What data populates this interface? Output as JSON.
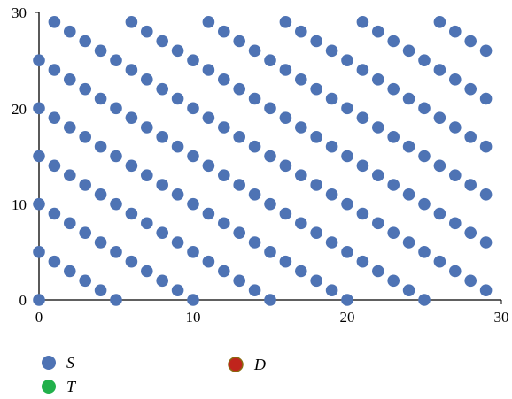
{
  "chart_data": {
    "type": "scatter",
    "xlim": [
      0,
      30
    ],
    "ylim": [
      0,
      30
    ],
    "x_ticks": [
      "0",
      "10",
      "20",
      "30"
    ],
    "y_ticks": [
      "0",
      "10",
      "20",
      "30"
    ],
    "grid": false,
    "legend_position": "bottom-left",
    "series": [
      {
        "name": "S",
        "color": "#4e73b4",
        "points": [
          [
            0,
            0
          ],
          [
            0,
            5
          ],
          [
            0,
            10
          ],
          [
            0,
            15
          ],
          [
            0,
            20
          ],
          [
            0,
            25
          ],
          [
            1,
            4
          ],
          [
            1,
            9
          ],
          [
            1,
            14
          ],
          [
            1,
            19
          ],
          [
            1,
            24
          ],
          [
            1,
            29
          ],
          [
            2,
            3
          ],
          [
            2,
            8
          ],
          [
            2,
            13
          ],
          [
            2,
            18
          ],
          [
            2,
            23
          ],
          [
            2,
            28
          ],
          [
            3,
            2
          ],
          [
            3,
            7
          ],
          [
            3,
            12
          ],
          [
            3,
            17
          ],
          [
            3,
            22
          ],
          [
            3,
            27
          ],
          [
            4,
            1
          ],
          [
            4,
            6
          ],
          [
            4,
            11
          ],
          [
            4,
            16
          ],
          [
            4,
            21
          ],
          [
            4,
            26
          ],
          [
            5,
            0
          ],
          [
            5,
            5
          ],
          [
            5,
            10
          ],
          [
            5,
            15
          ],
          [
            5,
            20
          ],
          [
            5,
            25
          ],
          [
            6,
            4
          ],
          [
            6,
            9
          ],
          [
            6,
            14
          ],
          [
            6,
            19
          ],
          [
            6,
            24
          ],
          [
            6,
            29
          ],
          [
            7,
            3
          ],
          [
            7,
            8
          ],
          [
            7,
            13
          ],
          [
            7,
            18
          ],
          [
            7,
            23
          ],
          [
            7,
            28
          ],
          [
            8,
            2
          ],
          [
            8,
            7
          ],
          [
            8,
            12
          ],
          [
            8,
            17
          ],
          [
            8,
            22
          ],
          [
            8,
            27
          ],
          [
            9,
            1
          ],
          [
            9,
            6
          ],
          [
            9,
            11
          ],
          [
            9,
            16
          ],
          [
            9,
            21
          ],
          [
            9,
            26
          ],
          [
            10,
            0
          ],
          [
            10,
            5
          ],
          [
            10,
            10
          ],
          [
            10,
            15
          ],
          [
            10,
            20
          ],
          [
            10,
            25
          ],
          [
            11,
            4
          ],
          [
            11,
            9
          ],
          [
            11,
            14
          ],
          [
            11,
            19
          ],
          [
            11,
            24
          ],
          [
            11,
            29
          ],
          [
            12,
            3
          ],
          [
            12,
            8
          ],
          [
            12,
            13
          ],
          [
            12,
            18
          ],
          [
            12,
            23
          ],
          [
            12,
            28
          ],
          [
            13,
            2
          ],
          [
            13,
            7
          ],
          [
            13,
            12
          ],
          [
            13,
            17
          ],
          [
            13,
            22
          ],
          [
            13,
            27
          ],
          [
            14,
            1
          ],
          [
            14,
            6
          ],
          [
            14,
            11
          ],
          [
            14,
            16
          ],
          [
            14,
            21
          ],
          [
            14,
            26
          ],
          [
            15,
            0
          ],
          [
            15,
            5
          ],
          [
            15,
            10
          ],
          [
            15,
            15
          ],
          [
            15,
            20
          ],
          [
            15,
            25
          ],
          [
            16,
            4
          ],
          [
            16,
            9
          ],
          [
            16,
            14
          ],
          [
            16,
            19
          ],
          [
            16,
            24
          ],
          [
            16,
            29
          ],
          [
            17,
            3
          ],
          [
            17,
            8
          ],
          [
            17,
            13
          ],
          [
            17,
            18
          ],
          [
            17,
            23
          ],
          [
            17,
            28
          ],
          [
            18,
            2
          ],
          [
            18,
            7
          ],
          [
            18,
            12
          ],
          [
            18,
            17
          ],
          [
            18,
            22
          ],
          [
            18,
            27
          ],
          [
            19,
            1
          ],
          [
            19,
            6
          ],
          [
            19,
            11
          ],
          [
            19,
            16
          ],
          [
            19,
            21
          ],
          [
            19,
            26
          ],
          [
            20,
            0
          ],
          [
            20,
            5
          ],
          [
            20,
            10
          ],
          [
            20,
            15
          ],
          [
            20,
            20
          ],
          [
            20,
            25
          ],
          [
            21,
            4
          ],
          [
            21,
            9
          ],
          [
            21,
            14
          ],
          [
            21,
            19
          ],
          [
            21,
            24
          ],
          [
            21,
            29
          ],
          [
            22,
            3
          ],
          [
            22,
            8
          ],
          [
            22,
            13
          ],
          [
            22,
            18
          ],
          [
            22,
            23
          ],
          [
            22,
            28
          ],
          [
            23,
            2
          ],
          [
            23,
            7
          ],
          [
            23,
            12
          ],
          [
            23,
            17
          ],
          [
            23,
            22
          ],
          [
            23,
            27
          ],
          [
            24,
            1
          ],
          [
            24,
            6
          ],
          [
            24,
            11
          ],
          [
            24,
            16
          ],
          [
            24,
            21
          ],
          [
            24,
            26
          ],
          [
            25,
            0
          ],
          [
            25,
            5
          ],
          [
            25,
            10
          ],
          [
            25,
            15
          ],
          [
            25,
            20
          ],
          [
            25,
            25
          ],
          [
            26,
            4
          ],
          [
            26,
            9
          ],
          [
            26,
            14
          ],
          [
            26,
            19
          ],
          [
            26,
            24
          ],
          [
            26,
            29
          ],
          [
            27,
            3
          ],
          [
            27,
            8
          ],
          [
            27,
            13
          ],
          [
            27,
            18
          ],
          [
            27,
            23
          ],
          [
            27,
            28
          ],
          [
            28,
            2
          ],
          [
            28,
            7
          ],
          [
            28,
            12
          ],
          [
            28,
            17
          ],
          [
            28,
            22
          ],
          [
            28,
            27
          ],
          [
            29,
            1
          ],
          [
            29,
            6
          ],
          [
            29,
            11
          ],
          [
            29,
            16
          ],
          [
            29,
            21
          ],
          [
            29,
            26
          ]
        ]
      },
      {
        "name": "T",
        "color": "#22b04b",
        "points": []
      },
      {
        "name": "D",
        "color": "#c0241c",
        "points": []
      }
    ]
  }
}
